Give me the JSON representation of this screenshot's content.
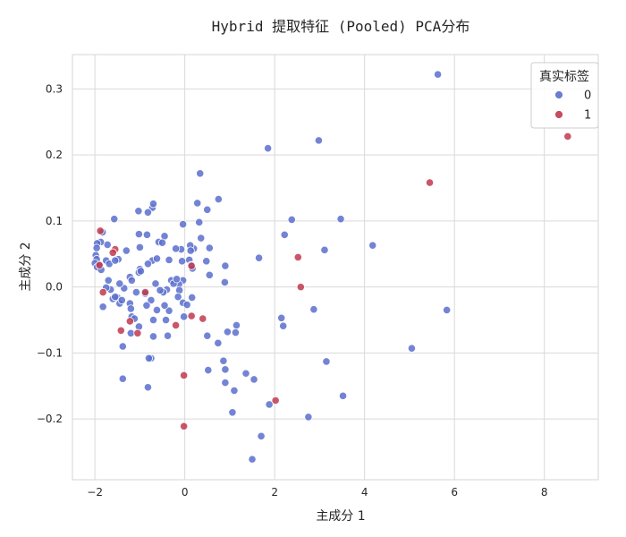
{
  "chart_data": {
    "type": "scatter",
    "title": "Hybrid 提取特征 (Pooled) PCA分布",
    "xlabel": "主成分 1",
    "ylabel": "主成分 2",
    "xlim": [
      -2.5,
      9.2
    ],
    "ylim": [
      -0.292,
      0.352
    ],
    "xticks": [
      -2,
      0,
      2,
      4,
      6,
      8
    ],
    "xtick_labels": [
      "−2",
      "0",
      "2",
      "4",
      "6",
      "8"
    ],
    "yticks": [
      -0.2,
      -0.1,
      0.0,
      0.1,
      0.2,
      0.3
    ],
    "ytick_labels": [
      "−0.2",
      "−0.1",
      "0.0",
      "0.1",
      "0.2",
      "0.3"
    ],
    "grid": true,
    "legend": {
      "title": "真实标签",
      "placement": "top-right"
    },
    "series": [
      {
        "name": "0",
        "color": "#5a6fce",
        "points": [
          [
            5.63,
            0.322
          ],
          [
            2.98,
            0.222
          ],
          [
            1.85,
            0.21
          ],
          [
            0.34,
            0.172
          ],
          [
            3.47,
            0.103
          ],
          [
            4.18,
            0.063
          ],
          [
            5.83,
            -0.035
          ],
          [
            5.05,
            -0.093
          ],
          [
            3.15,
            -0.113
          ],
          [
            3.52,
            -0.165
          ],
          [
            2.75,
            -0.197
          ],
          [
            2.87,
            -0.034
          ],
          [
            3.11,
            0.056
          ],
          [
            2.38,
            0.102
          ],
          [
            2.22,
            0.079
          ],
          [
            1.65,
            0.044
          ],
          [
            2.15,
            -0.047
          ],
          [
            2.19,
            -0.059
          ],
          [
            1.54,
            -0.14
          ],
          [
            1.88,
            -0.178
          ],
          [
            1.7,
            -0.226
          ],
          [
            1.5,
            -0.261
          ],
          [
            1.36,
            -0.131
          ],
          [
            1.06,
            -0.19
          ],
          [
            1.1,
            -0.157
          ],
          [
            0.9,
            -0.125
          ],
          [
            0.86,
            -0.112
          ],
          [
            0.9,
            -0.145
          ],
          [
            1.13,
            -0.069
          ],
          [
            1.15,
            -0.058
          ],
          [
            0.95,
            -0.068
          ],
          [
            0.5,
            -0.074
          ],
          [
            0.74,
            -0.085
          ],
          [
            0.52,
            -0.126
          ],
          [
            0.9,
            0.032
          ],
          [
            0.89,
            0.007
          ],
          [
            0.55,
            0.018
          ],
          [
            0.48,
            0.039
          ],
          [
            0.55,
            0.059
          ],
          [
            0.28,
            0.127
          ],
          [
            0.5,
            0.117
          ],
          [
            0.75,
            0.133
          ],
          [
            0.32,
            0.098
          ],
          [
            0.36,
            0.074
          ],
          [
            0.2,
            0.058
          ],
          [
            0.12,
            0.063
          ],
          [
            0.13,
            0.055
          ],
          [
            0.1,
            0.041
          ],
          [
            0.14,
            0.033
          ],
          [
            0.17,
            0.028
          ],
          [
            -0.04,
            0.095
          ],
          [
            -0.08,
            0.057
          ],
          [
            -0.06,
            0.039
          ],
          [
            -0.04,
            0.01
          ],
          [
            -0.13,
            0.004
          ],
          [
            -0.12,
            -0.005
          ],
          [
            -0.04,
            -0.024
          ],
          [
            0.16,
            -0.016
          ],
          [
            0.05,
            -0.027
          ],
          [
            -0.02,
            -0.045
          ],
          [
            -0.35,
            -0.036
          ],
          [
            -0.45,
            -0.028
          ],
          [
            -0.4,
            -0.004
          ],
          [
            -0.35,
            0.041
          ],
          [
            -0.45,
            0.077
          ],
          [
            -0.58,
            0.068
          ],
          [
            -0.5,
            0.067
          ],
          [
            -0.72,
            0.12
          ],
          [
            -0.7,
            0.126
          ],
          [
            -0.82,
            0.113
          ],
          [
            -1.03,
            0.115
          ],
          [
            -0.84,
            0.079
          ],
          [
            -1.02,
            0.08
          ],
          [
            -1.0,
            0.06
          ],
          [
            -1.3,
            0.055
          ],
          [
            -1.48,
            0.042
          ],
          [
            -1.72,
            0.064
          ],
          [
            -1.57,
            0.103
          ],
          [
            -1.83,
            0.083
          ],
          [
            -1.87,
            0.068
          ],
          [
            -1.95,
            0.066
          ],
          [
            -1.96,
            0.059
          ],
          [
            -1.98,
            0.048
          ],
          [
            -1.96,
            0.042
          ],
          [
            -2.0,
            0.036
          ],
          [
            -1.95,
            0.03
          ],
          [
            -1.89,
            0.033
          ],
          [
            -1.86,
            0.026
          ],
          [
            -1.75,
            0.04
          ],
          [
            -1.68,
            0.035
          ],
          [
            -1.7,
            0.01
          ],
          [
            -1.65,
            -0.004
          ],
          [
            -1.75,
            -0.001
          ],
          [
            -1.6,
            -0.018
          ],
          [
            -1.5,
            -0.016
          ],
          [
            -1.45,
            -0.025
          ],
          [
            -1.55,
            -0.015
          ],
          [
            -1.35,
            -0.002
          ],
          [
            -1.22,
            0.015
          ],
          [
            -1.18,
            0.01
          ],
          [
            -1.22,
            -0.025
          ],
          [
            -1.2,
            -0.033
          ],
          [
            -1.18,
            -0.045
          ],
          [
            -1.2,
            -0.07
          ],
          [
            -1.38,
            -0.09
          ],
          [
            -1.38,
            -0.139
          ],
          [
            -0.82,
            -0.152
          ],
          [
            -0.75,
            -0.108
          ],
          [
            -0.7,
            -0.075
          ],
          [
            -0.7,
            -0.05
          ],
          [
            -0.42,
            -0.05
          ],
          [
            -0.38,
            -0.074
          ],
          [
            -0.65,
            0.005
          ],
          [
            -0.72,
            0.04
          ],
          [
            -0.62,
            0.043
          ],
          [
            -0.82,
            0.035
          ],
          [
            -1.0,
            0.027
          ],
          [
            -1.02,
            0.022
          ],
          [
            -0.98,
            0.024
          ],
          [
            -1.08,
            -0.008
          ],
          [
            -0.88,
            -0.01
          ],
          [
            -0.75,
            -0.02
          ],
          [
            -0.48,
            -0.008
          ],
          [
            -0.3,
            0.01
          ],
          [
            -0.25,
            0.005
          ],
          [
            -0.18,
            0.012
          ],
          [
            -0.2,
            0.058
          ],
          [
            -1.45,
            0.005
          ],
          [
            -1.4,
            -0.02
          ],
          [
            -1.55,
            0.04
          ],
          [
            -1.82,
            -0.03
          ],
          [
            -1.12,
            -0.048
          ],
          [
            -1.02,
            -0.06
          ],
          [
            -0.8,
            -0.108
          ],
          [
            -0.55,
            -0.005
          ],
          [
            -0.15,
            -0.015
          ],
          [
            -0.62,
            -0.035
          ],
          [
            -0.85,
            -0.028
          ]
        ]
      },
      {
        "name": "1",
        "color": "#c0394e",
        "points": [
          [
            8.52,
            0.228
          ],
          [
            5.45,
            0.158
          ],
          [
            2.52,
            0.045
          ],
          [
            2.58,
            0.0
          ],
          [
            2.02,
            -0.172
          ],
          [
            -0.02,
            -0.134
          ],
          [
            -0.02,
            -0.211
          ],
          [
            0.15,
            0.032
          ],
          [
            0.15,
            -0.044
          ],
          [
            0.4,
            -0.048
          ],
          [
            -0.2,
            -0.058
          ],
          [
            -0.88,
            -0.008
          ],
          [
            -1.05,
            -0.07
          ],
          [
            -1.22,
            -0.052
          ],
          [
            -1.42,
            -0.066
          ],
          [
            -1.55,
            0.057
          ],
          [
            -1.6,
            0.052
          ],
          [
            -1.88,
            0.085
          ],
          [
            -1.82,
            -0.008
          ],
          [
            -1.9,
            0.033
          ]
        ]
      }
    ]
  }
}
